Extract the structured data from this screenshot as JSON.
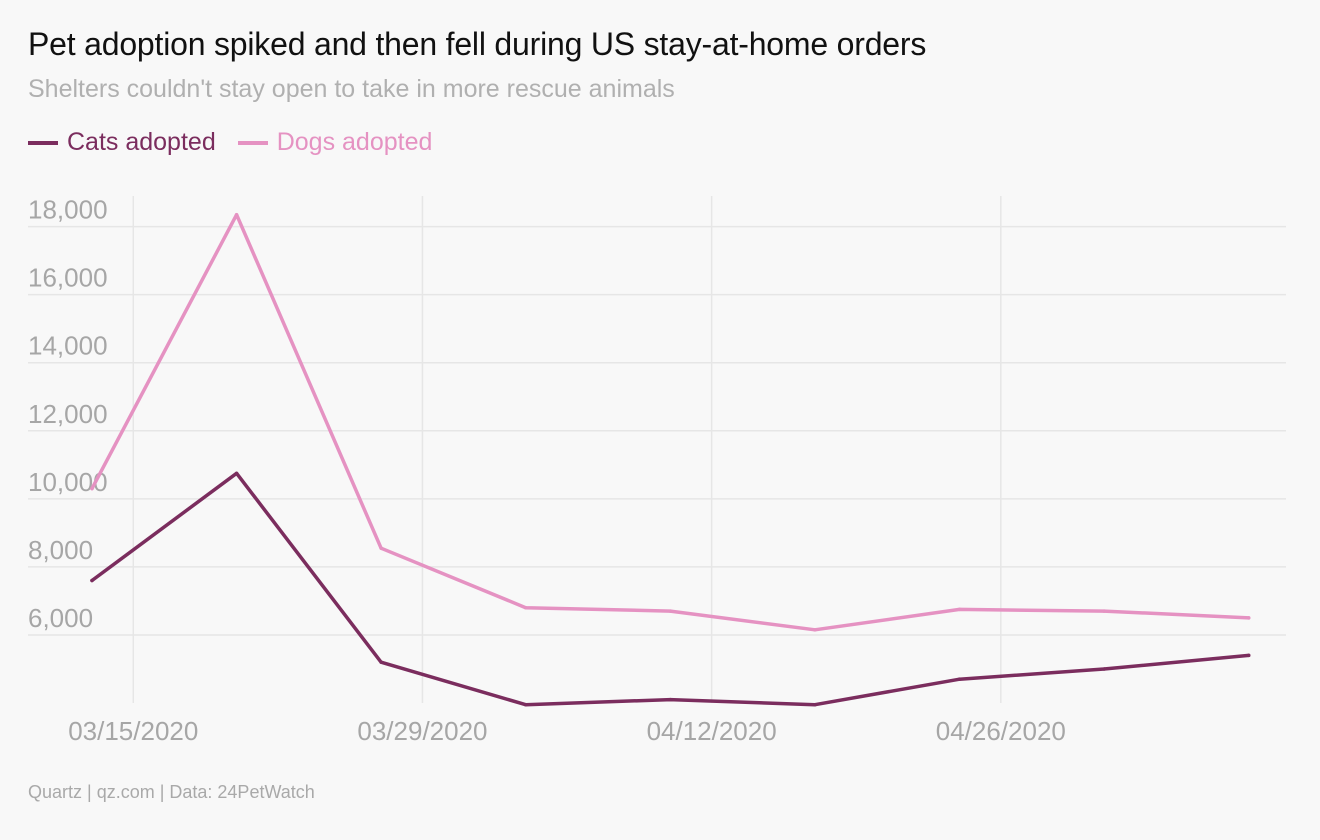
{
  "header": {
    "title": "Pet adoption spiked and then fell during US stay-at-home orders",
    "subtitle": "Shelters couldn't stay open to take in more rescue animals"
  },
  "footer": {
    "source": "Quartz | qz.com | Data: 24PetWatch"
  },
  "colors": {
    "cats": "#7b2d5e",
    "dogs": "#e592c2",
    "grid": "#e6e6e6",
    "axis_text": "#a6a6a6"
  },
  "chart_data": {
    "type": "line",
    "title": "Pet adoption spiked and then fell during US stay-at-home orders",
    "subtitle": "Shelters couldn't stay open to take in more rescue animals",
    "x": [
      "2020-03-13",
      "2020-03-20",
      "2020-03-27",
      "2020-04-03",
      "2020-04-10",
      "2020-04-17",
      "2020-04-24",
      "2020-05-01",
      "2020-05-08"
    ],
    "x_tick_labels": [
      "03/15/2020",
      "03/29/2020",
      "04/12/2020",
      "04/26/2020"
    ],
    "x_ticks": [
      "2020-03-15",
      "2020-03-29",
      "2020-04-12",
      "2020-04-26"
    ],
    "y_ticks": [
      6000,
      8000,
      10000,
      12000,
      14000,
      16000,
      18000
    ],
    "y_tick_labels": [
      "6,000",
      "8,000",
      "10,000",
      "12,000",
      "14,000",
      "16,000",
      "18,000"
    ],
    "ylim": [
      4000,
      18900
    ],
    "xlim": [
      "2020-03-10",
      "2020-05-10"
    ],
    "grid": true,
    "legend_position": "top-left",
    "series": [
      {
        "name": "Cats adopted",
        "color": "#7b2d5e",
        "values": [
          7600,
          10750,
          5200,
          3950,
          4100,
          3950,
          4700,
          5000,
          5400
        ]
      },
      {
        "name": "Dogs adopted",
        "color": "#e592c2",
        "values": [
          10300,
          18350,
          8550,
          6800,
          6700,
          6150,
          6750,
          6700,
          6500
        ]
      }
    ]
  }
}
